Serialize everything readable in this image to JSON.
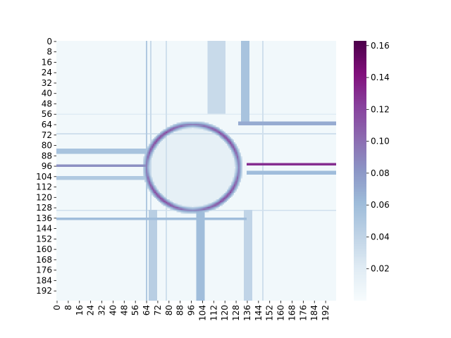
{
  "chart_data": {
    "type": "heatmap",
    "title": "",
    "xlabel": "",
    "ylabel": "",
    "colormap": "BuPu",
    "grid_size": 200,
    "xlim": [
      0,
      200
    ],
    "ylim": [
      0,
      200
    ],
    "x_ticks": [
      "0",
      "8",
      "16",
      "24",
      "32",
      "40",
      "48",
      "56",
      "64",
      "72",
      "80",
      "88",
      "96",
      "104",
      "112",
      "120",
      "128",
      "136",
      "144",
      "152",
      "160",
      "168",
      "176",
      "184",
      "192"
    ],
    "y_ticks": [
      "0",
      "8",
      "16",
      "24",
      "32",
      "40",
      "48",
      "56",
      "64",
      "72",
      "80",
      "88",
      "96",
      "104",
      "112",
      "120",
      "128",
      "136",
      "144",
      "152",
      "160",
      "168",
      "176",
      "184",
      "192"
    ],
    "colorbar": {
      "range": [
        0.0,
        0.163
      ],
      "ticks": [
        "0.02",
        "0.04",
        "0.06",
        "0.08",
        "0.10",
        "0.12",
        "0.14",
        "0.16"
      ],
      "tick_values": [
        0.02,
        0.04,
        0.06,
        0.08,
        0.1,
        0.12,
        0.14,
        0.16
      ]
    },
    "background_value": 0.005,
    "features": {
      "ring": {
        "center": [
          97,
          97
        ],
        "radius": 33,
        "value": 0.12,
        "inner_value": 0.015
      },
      "horizontal_bands": [
        {
          "rows": [
            62,
            65
          ],
          "cols": [
            130,
            200
          ],
          "value": 0.07
        },
        {
          "rows": [
            83,
            87
          ],
          "cols": [
            0,
            65
          ],
          "value": 0.055
        },
        {
          "rows": [
            95,
            97
          ],
          "cols": [
            0,
            65
          ],
          "value": 0.085
        },
        {
          "rows": [
            94,
            96
          ],
          "cols": [
            136,
            200
          ],
          "value": 0.13
        },
        {
          "rows": [
            100,
            103
          ],
          "cols": [
            136,
            200
          ],
          "value": 0.06
        },
        {
          "rows": [
            104,
            107
          ],
          "cols": [
            0,
            65
          ],
          "value": 0.05
        },
        {
          "rows": [
            136,
            138
          ],
          "cols": [
            0,
            136
          ],
          "value": 0.06
        }
      ],
      "vertical_bands": [
        {
          "cols": [
            108,
            121
          ],
          "rows": [
            0,
            56
          ],
          "value": 0.035
        },
        {
          "cols": [
            132,
            138
          ],
          "rows": [
            0,
            62
          ],
          "value": 0.055
        },
        {
          "cols": [
            66,
            72
          ],
          "rows": [
            130,
            200
          ],
          "value": 0.045
        },
        {
          "cols": [
            100,
            106
          ],
          "rows": [
            132,
            200
          ],
          "value": 0.06
        },
        {
          "cols": [
            134,
            140
          ],
          "rows": [
            130,
            200
          ],
          "value": 0.04
        }
      ],
      "thin_lines": [
        {
          "orientation": "v",
          "at": 64,
          "value": 0.05
        },
        {
          "orientation": "v",
          "at": 67,
          "value": 0.035
        },
        {
          "orientation": "v",
          "at": 78,
          "value": 0.03
        },
        {
          "orientation": "v",
          "at": 147,
          "value": 0.03
        },
        {
          "orientation": "h",
          "at": 56,
          "value": 0.02
        },
        {
          "orientation": "h",
          "at": 71,
          "value": 0.03
        },
        {
          "orientation": "h",
          "at": 130,
          "value": 0.03
        }
      ]
    }
  }
}
